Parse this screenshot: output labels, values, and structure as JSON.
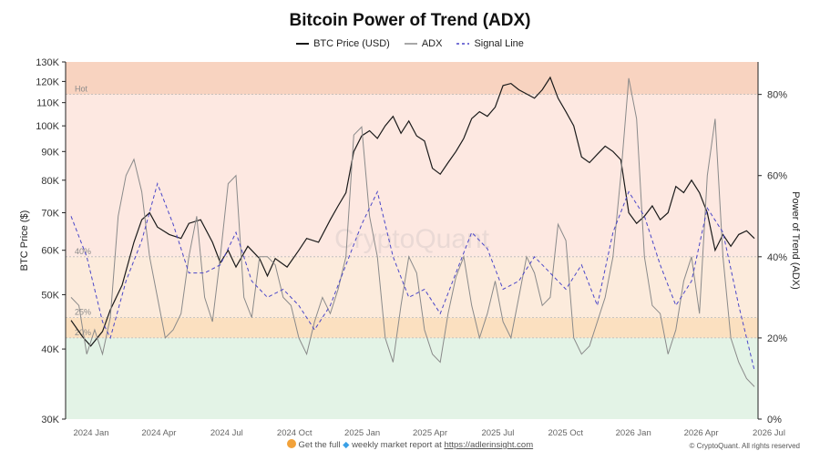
{
  "chart_data": {
    "type": "line",
    "title": "Bitcoin Power of Trend (ADX)",
    "legend": [
      {
        "name": "BTC Price (USD)",
        "style": "solid",
        "color": "#1a1a1a"
      },
      {
        "name": "ADX",
        "style": "solid",
        "color": "#8a8a8a"
      },
      {
        "name": "Signal Line",
        "style": "dashed",
        "color": "#4a46c8"
      }
    ],
    "ylabel_left": "BTC Price ($)",
    "ylabel_right": "Power of Trend (ADX)",
    "y_left_scale": "log",
    "y_left_ticks": [
      "130K",
      "120K",
      "110K",
      "100K",
      "90K",
      "80K",
      "70K",
      "60K",
      "50K",
      "40K",
      "30K"
    ],
    "y_left_range": [
      30000,
      130000
    ],
    "y_right_ticks": [
      "80%",
      "60%",
      "40%",
      "20%",
      "0%"
    ],
    "y_right_range": [
      0,
      88
    ],
    "x_ticks": [
      "2024 Jan",
      "2024 Apr",
      "2024 Jul",
      "2024 Oct",
      "2025 Jan",
      "2025 Apr",
      "2025 Jul",
      "2025 Oct",
      "2026 Jan",
      "2026 Apr",
      "2026 Jul"
    ],
    "zones": [
      {
        "label": "Hot",
        "threshold": 80,
        "color": "#f8d3c0"
      },
      {
        "label": "40%",
        "threshold": 40,
        "color": "#fde8e1"
      },
      {
        "label": "25%",
        "threshold": 25,
        "color": "#fde9de"
      },
      {
        "label": "20%",
        "threshold": 20,
        "color": "#fbe0c0"
      },
      {
        "label": "",
        "threshold": 0,
        "color": "#e3f3e6"
      }
    ],
    "series": [
      {
        "name": "BTC Price (USD)",
        "axis": "left",
        "points": [
          [
            0,
            45000
          ],
          [
            0.03,
            42000
          ],
          [
            0.05,
            40500
          ],
          [
            0.08,
            43000
          ],
          [
            0.1,
            47000
          ],
          [
            0.13,
            52000
          ],
          [
            0.16,
            62000
          ],
          [
            0.18,
            68000
          ],
          [
            0.2,
            70000
          ],
          [
            0.22,
            66000
          ],
          [
            0.25,
            64000
          ],
          [
            0.28,
            63000
          ],
          [
            0.3,
            67000
          ],
          [
            0.33,
            68000
          ],
          [
            0.36,
            62000
          ],
          [
            0.38,
            57000
          ],
          [
            0.4,
            60000
          ],
          [
            0.42,
            56000
          ],
          [
            0.45,
            61000
          ],
          [
            0.48,
            58000
          ],
          [
            0.5,
            54000
          ],
          [
            0.52,
            58000
          ],
          [
            0.55,
            56000
          ],
          [
            0.58,
            60000
          ],
          [
            0.6,
            63000
          ],
          [
            0.63,
            62000
          ],
          [
            0.66,
            68000
          ],
          [
            0.68,
            72000
          ],
          [
            0.7,
            76000
          ],
          [
            0.72,
            90000
          ],
          [
            0.74,
            96000
          ],
          [
            0.76,
            98000
          ],
          [
            0.78,
            95000
          ],
          [
            0.8,
            100000
          ],
          [
            0.82,
            104000
          ],
          [
            0.84,
            97000
          ],
          [
            0.86,
            102000
          ],
          [
            0.88,
            96000
          ],
          [
            0.9,
            94000
          ],
          [
            0.92,
            84000
          ],
          [
            0.94,
            82000
          ],
          [
            0.96,
            86000
          ],
          [
            0.98,
            90000
          ],
          [
            1.0,
            95000
          ],
          [
            1.02,
            103000
          ],
          [
            1.04,
            106000
          ],
          [
            1.06,
            104000
          ],
          [
            1.08,
            108000
          ],
          [
            1.1,
            118000
          ],
          [
            1.12,
            119000
          ],
          [
            1.14,
            116000
          ],
          [
            1.16,
            114000
          ],
          [
            1.18,
            112000
          ],
          [
            1.2,
            116000
          ],
          [
            1.22,
            122000
          ],
          [
            1.24,
            112000
          ],
          [
            1.26,
            106000
          ],
          [
            1.28,
            100000
          ],
          [
            1.3,
            88000
          ],
          [
            1.32,
            86000
          ],
          [
            1.34,
            89000
          ],
          [
            1.36,
            92000
          ],
          [
            1.38,
            90000
          ],
          [
            1.4,
            87000
          ],
          [
            1.42,
            70000
          ],
          [
            1.44,
            67000
          ],
          [
            1.46,
            69000
          ],
          [
            1.48,
            72000
          ],
          [
            1.5,
            68000
          ],
          [
            1.52,
            70000
          ],
          [
            1.54,
            78000
          ],
          [
            1.56,
            76000
          ],
          [
            1.58,
            80000
          ],
          [
            1.6,
            76000
          ],
          [
            1.62,
            70000
          ],
          [
            1.64,
            60000
          ],
          [
            1.66,
            64000
          ],
          [
            1.68,
            61000
          ],
          [
            1.7,
            64000
          ],
          [
            1.72,
            65000
          ],
          [
            1.74,
            63000
          ]
        ]
      },
      {
        "name": "ADX",
        "axis": "right",
        "points": [
          [
            0,
            30
          ],
          [
            0.02,
            28
          ],
          [
            0.04,
            16
          ],
          [
            0.06,
            22
          ],
          [
            0.08,
            16
          ],
          [
            0.1,
            25
          ],
          [
            0.12,
            50
          ],
          [
            0.14,
            60
          ],
          [
            0.16,
            64
          ],
          [
            0.18,
            56
          ],
          [
            0.2,
            40
          ],
          [
            0.22,
            30
          ],
          [
            0.24,
            20
          ],
          [
            0.26,
            22
          ],
          [
            0.28,
            26
          ],
          [
            0.3,
            40
          ],
          [
            0.32,
            50
          ],
          [
            0.34,
            30
          ],
          [
            0.36,
            24
          ],
          [
            0.38,
            40
          ],
          [
            0.4,
            58
          ],
          [
            0.42,
            60
          ],
          [
            0.44,
            30
          ],
          [
            0.46,
            25
          ],
          [
            0.48,
            40
          ],
          [
            0.5,
            40
          ],
          [
            0.52,
            38
          ],
          [
            0.54,
            30
          ],
          [
            0.56,
            28
          ],
          [
            0.58,
            20
          ],
          [
            0.6,
            16
          ],
          [
            0.62,
            24
          ],
          [
            0.64,
            30
          ],
          [
            0.66,
            26
          ],
          [
            0.68,
            32
          ],
          [
            0.7,
            40
          ],
          [
            0.72,
            70
          ],
          [
            0.74,
            72
          ],
          [
            0.76,
            50
          ],
          [
            0.78,
            40
          ],
          [
            0.8,
            20
          ],
          [
            0.82,
            14
          ],
          [
            0.84,
            28
          ],
          [
            0.86,
            40
          ],
          [
            0.88,
            36
          ],
          [
            0.9,
            22
          ],
          [
            0.92,
            16
          ],
          [
            0.94,
            14
          ],
          [
            0.96,
            26
          ],
          [
            0.98,
            35
          ],
          [
            1.0,
            40
          ],
          [
            1.02,
            28
          ],
          [
            1.04,
            20
          ],
          [
            1.06,
            26
          ],
          [
            1.08,
            34
          ],
          [
            1.1,
            24
          ],
          [
            1.12,
            20
          ],
          [
            1.14,
            30
          ],
          [
            1.16,
            40
          ],
          [
            1.18,
            36
          ],
          [
            1.2,
            28
          ],
          [
            1.22,
            30
          ],
          [
            1.24,
            48
          ],
          [
            1.26,
            44
          ],
          [
            1.28,
            20
          ],
          [
            1.3,
            16
          ],
          [
            1.32,
            18
          ],
          [
            1.34,
            24
          ],
          [
            1.36,
            30
          ],
          [
            1.38,
            40
          ],
          [
            1.4,
            60
          ],
          [
            1.42,
            84
          ],
          [
            1.44,
            74
          ],
          [
            1.46,
            40
          ],
          [
            1.48,
            28
          ],
          [
            1.5,
            26
          ],
          [
            1.52,
            16
          ],
          [
            1.54,
            22
          ],
          [
            1.56,
            34
          ],
          [
            1.58,
            40
          ],
          [
            1.6,
            26
          ],
          [
            1.62,
            60
          ],
          [
            1.64,
            74
          ],
          [
            1.66,
            40
          ],
          [
            1.68,
            20
          ],
          [
            1.7,
            14
          ],
          [
            1.72,
            10
          ],
          [
            1.74,
            8
          ]
        ]
      },
      {
        "name": "Signal Line",
        "axis": "right",
        "points": [
          [
            0,
            50
          ],
          [
            0.04,
            40
          ],
          [
            0.08,
            24
          ],
          [
            0.1,
            20
          ],
          [
            0.14,
            34
          ],
          [
            0.18,
            44
          ],
          [
            0.22,
            58
          ],
          [
            0.26,
            48
          ],
          [
            0.3,
            36
          ],
          [
            0.34,
            36
          ],
          [
            0.38,
            38
          ],
          [
            0.42,
            46
          ],
          [
            0.46,
            34
          ],
          [
            0.5,
            30
          ],
          [
            0.54,
            32
          ],
          [
            0.58,
            28
          ],
          [
            0.62,
            22
          ],
          [
            0.66,
            28
          ],
          [
            0.7,
            38
          ],
          [
            0.74,
            48
          ],
          [
            0.78,
            56
          ],
          [
            0.82,
            40
          ],
          [
            0.86,
            30
          ],
          [
            0.9,
            32
          ],
          [
            0.94,
            26
          ],
          [
            0.98,
            36
          ],
          [
            1.02,
            46
          ],
          [
            1.06,
            42
          ],
          [
            1.1,
            32
          ],
          [
            1.14,
            34
          ],
          [
            1.18,
            40
          ],
          [
            1.22,
            36
          ],
          [
            1.26,
            32
          ],
          [
            1.3,
            38
          ],
          [
            1.34,
            28
          ],
          [
            1.38,
            46
          ],
          [
            1.42,
            56
          ],
          [
            1.46,
            50
          ],
          [
            1.5,
            38
          ],
          [
            1.54,
            28
          ],
          [
            1.58,
            34
          ],
          [
            1.62,
            52
          ],
          [
            1.66,
            46
          ],
          [
            1.7,
            28
          ],
          [
            1.74,
            12
          ]
        ]
      }
    ]
  },
  "watermark": "CryptoQuant",
  "footer": {
    "text": "Get the full",
    "text2": "weekly market report at",
    "link": "https://adlerinsight.com",
    "copyright": "© CryptoQuant. All rights reserved"
  }
}
